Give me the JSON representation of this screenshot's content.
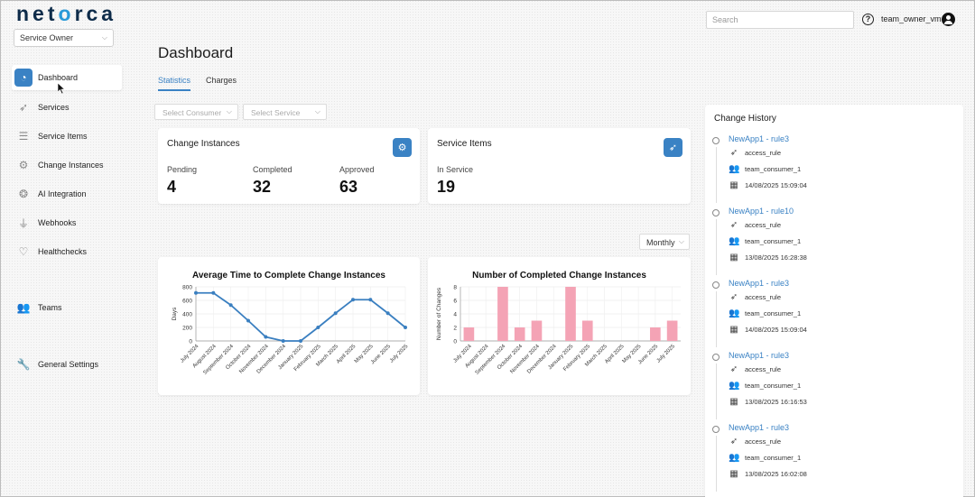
{
  "app": {
    "logo": "netorca"
  },
  "role_select": {
    "value": "Service Owner"
  },
  "sidebar": {
    "items": [
      {
        "label": "Dashboard",
        "icon": "pie-chart-icon"
      },
      {
        "label": "Services",
        "icon": "rocket-icon"
      },
      {
        "label": "Service Items",
        "icon": "list-icon"
      },
      {
        "label": "Change Instances",
        "icon": "gears-icon"
      },
      {
        "label": "AI Integration",
        "icon": "brain-icon"
      },
      {
        "label": "Webhooks",
        "icon": "plug-icon"
      },
      {
        "label": "Healthchecks",
        "icon": "heartbeat-icon"
      },
      {
        "label": "Teams",
        "icon": "users-icon"
      },
      {
        "label": "General Settings",
        "icon": "wrench-icon"
      }
    ]
  },
  "topbar": {
    "search_placeholder": "Search",
    "user_name": "team_owner_vm"
  },
  "page": {
    "title": "Dashboard"
  },
  "tabs": [
    {
      "label": "Statistics"
    },
    {
      "label": "Charges"
    }
  ],
  "filters": {
    "consumer_placeholder": "Select Consumer",
    "service_placeholder": "Select Service"
  },
  "change_instances_card": {
    "title": "Change Instances",
    "stats": [
      {
        "label": "Pending",
        "value": "4"
      },
      {
        "label": "Completed",
        "value": "32"
      },
      {
        "label": "Approved",
        "value": "63"
      }
    ]
  },
  "service_items_card": {
    "title": "Service Items",
    "stats": [
      {
        "label": "In Service",
        "value": "19"
      }
    ]
  },
  "period_select": {
    "value": "Monthly"
  },
  "chart_data": [
    {
      "type": "line",
      "title": "Average Time to Complete Change Instances",
      "ylabel": "Days",
      "xlabel": "",
      "ylim": [
        0,
        800
      ],
      "yticks": [
        0,
        200,
        400,
        600,
        800
      ],
      "categories": [
        "July 2024",
        "August 2024",
        "September 2024",
        "October 2024",
        "November 2024",
        "December 2024",
        "January 2025",
        "February 2025",
        "March 2025",
        "April 2025",
        "May 2025",
        "June 2025",
        "July 2025"
      ],
      "values": [
        710,
        710,
        530,
        300,
        60,
        0,
        0,
        200,
        410,
        610,
        610,
        410,
        200
      ],
      "color": "#3a7fc0",
      "grid": true
    },
    {
      "type": "bar",
      "title": "Number of Completed Change Instances",
      "ylabel": "Number of Changes",
      "xlabel": "",
      "ylim": [
        0,
        8
      ],
      "yticks": [
        0,
        2,
        4,
        6,
        8
      ],
      "categories": [
        "July 2024",
        "August 2024",
        "September 2024",
        "October 2024",
        "November 2024",
        "December 2024",
        "January 2025",
        "February 2025",
        "March 2025",
        "April 2025",
        "May 2025",
        "June 2025",
        "July 2025"
      ],
      "values": [
        2,
        0,
        8,
        2,
        3,
        0,
        8,
        3,
        0,
        0,
        0,
        2,
        3
      ],
      "color": "#f4a3b5",
      "grid": true
    }
  ],
  "history": {
    "title": "Change History",
    "entries": [
      {
        "title": "NewApp1 - rule3",
        "type": "access_rule",
        "team": "team_consumer_1",
        "date": "14/08/2025 15:09:04"
      },
      {
        "title": "NewApp1 - rule10",
        "type": "access_rule",
        "team": "team_consumer_1",
        "date": "13/08/2025 16:28:38"
      },
      {
        "title": "NewApp1 - rule3",
        "type": "access_rule",
        "team": "team_consumer_1",
        "date": "14/08/2025 15:09:04"
      },
      {
        "title": "NewApp1 - rule3",
        "type": "access_rule",
        "team": "team_consumer_1",
        "date": "13/08/2025 16:16:53"
      },
      {
        "title": "NewApp1 - rule3",
        "type": "access_rule",
        "team": "team_consumer_1",
        "date": "13/08/2025 16:02:08"
      }
    ]
  },
  "colors": {
    "accent": "#3a82c4",
    "line_series": "#3a7fc0",
    "bar_series": "#f4a3b5"
  }
}
